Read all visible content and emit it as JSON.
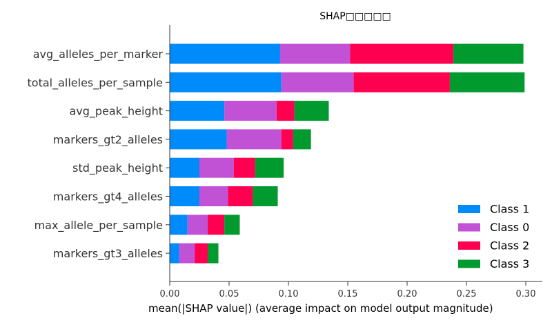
{
  "chart_data": {
    "type": "bar",
    "orientation": "horizontal",
    "stacked": true,
    "title": "SHAP□□□□□",
    "xlabel": "mean(|SHAP value|) (average impact on model output magnitude)",
    "ylabel": "",
    "xlim": [
      0,
      0.315
    ],
    "xticks": [
      0.0,
      0.05,
      0.1,
      0.15,
      0.2,
      0.25,
      0.3
    ],
    "xtick_labels": [
      "0.00",
      "0.05",
      "0.10",
      "0.15",
      "0.20",
      "0.25",
      "0.30"
    ],
    "grid": false,
    "legend_position": "bottom-right",
    "categories": [
      "avg_alleles_per_marker",
      "total_alleles_per_sample",
      "avg_peak_height",
      "markers_gt2_alleles",
      "std_peak_height",
      "markers_gt4_alleles",
      "max_allele_per_sample",
      "markers_gt3_alleles"
    ],
    "series": [
      {
        "name": "Class 1",
        "color": "#008bfb",
        "values": [
          0.093,
          0.094,
          0.046,
          0.048,
          0.025,
          0.025,
          0.015,
          0.008
        ]
      },
      {
        "name": "Class 0",
        "color": "#c152d6",
        "values": [
          0.059,
          0.061,
          0.044,
          0.046,
          0.029,
          0.024,
          0.017,
          0.013
        ]
      },
      {
        "name": "Class 2",
        "color": "#ff0051",
        "values": [
          0.087,
          0.081,
          0.015,
          0.01,
          0.018,
          0.021,
          0.014,
          0.011
        ]
      },
      {
        "name": "Class 3",
        "color": "#009a2e",
        "values": [
          0.059,
          0.063,
          0.029,
          0.015,
          0.024,
          0.021,
          0.013,
          0.009
        ]
      }
    ]
  }
}
